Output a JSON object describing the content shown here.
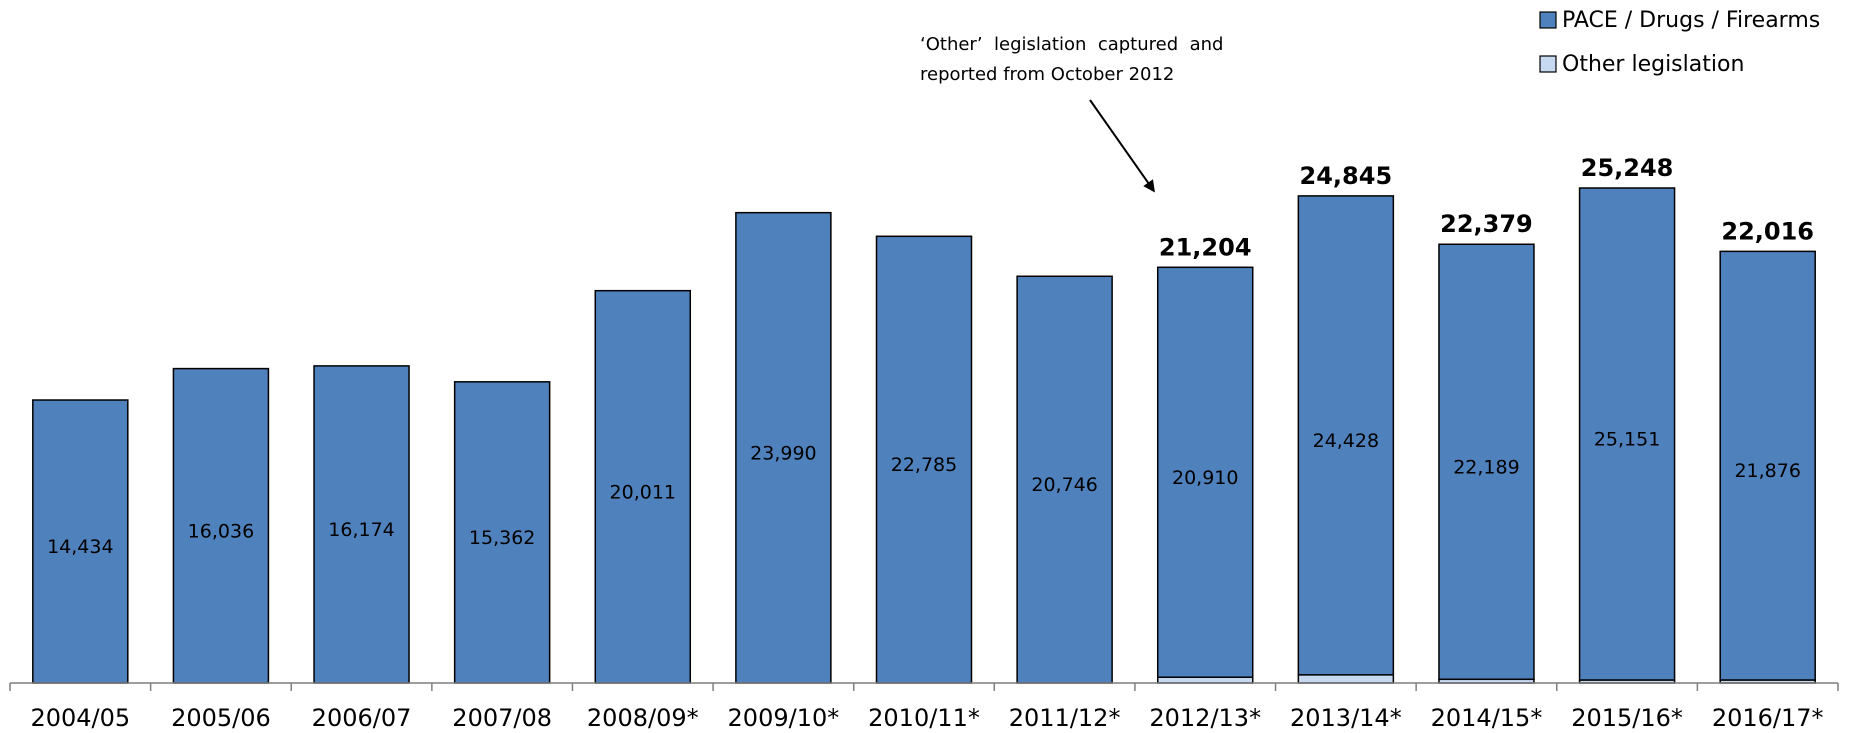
{
  "chart_data": {
    "type": "bar",
    "stacked": true,
    "categories": [
      "2004/05",
      "2005/06",
      "2006/07",
      "2007/08",
      "2008/09*",
      "2009/10*",
      "2010/11*",
      "2011/12*",
      "2012/13*",
      "2013/14*",
      "2014/15*",
      "2015/16*",
      "2016/17*"
    ],
    "series": [
      {
        "name": "PACE / Drugs / Firearms",
        "color": "#4F81BD",
        "values": [
          14434,
          16036,
          16174,
          15362,
          20011,
          23990,
          22785,
          20746,
          20910,
          24428,
          22189,
          25151,
          21876
        ],
        "value_labels": [
          "14,434",
          "16,036",
          "16,174",
          "15,362",
          "20,011",
          "23,990",
          "22,785",
          "20,746",
          "20,910",
          "24,428",
          "22,189",
          "25,151",
          "21,876"
        ]
      },
      {
        "name": "Other legislation",
        "color": "#C6D9F1",
        "values": [
          0,
          0,
          0,
          0,
          0,
          0,
          0,
          0,
          294,
          417,
          190,
          97,
          140
        ]
      }
    ],
    "totals": [
      null,
      null,
      null,
      null,
      null,
      null,
      null,
      null,
      21204,
      24845,
      22379,
      25248,
      22016
    ],
    "total_labels": [
      "",
      "",
      "",
      "",
      "",
      "",
      "",
      "",
      "21,204",
      "24,845",
      "22,379",
      "25,248",
      "22,016"
    ],
    "annotation": {
      "lines": [
        "‘Other’  legislation  captured  and",
        "reported from October 2012"
      ],
      "target_category": "2012/13*"
    },
    "legend_position": "top-right",
    "grid": false,
    "ylim": [
      0,
      26000
    ],
    "title": "",
    "xlabel": "",
    "ylabel": ""
  }
}
